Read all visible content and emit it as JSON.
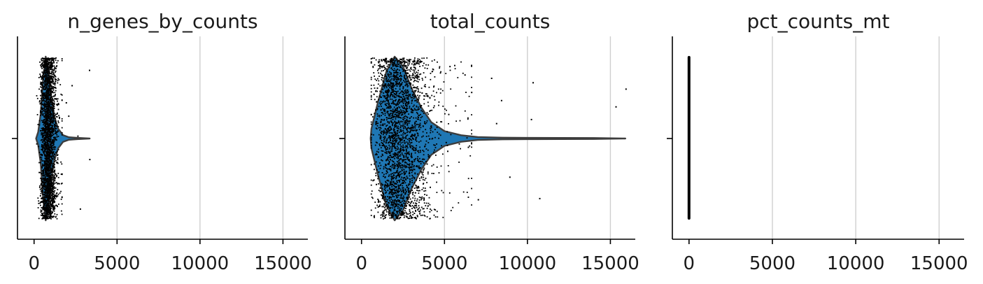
{
  "chart_data": [
    {
      "type": "violin",
      "title": "n_genes_by_counts",
      "xlim": [
        -1000,
        16500
      ],
      "xticks": [
        0,
        5000,
        10000,
        15000
      ],
      "xtick_labels": [
        "0",
        "5000",
        "10000",
        "15000"
      ],
      "grid": "vertical",
      "fill_color": "#1f77b4",
      "edge_color": "#3d3d3d",
      "distribution": {
        "min": 120,
        "q1": 650,
        "median": 790,
        "q3": 950,
        "max": 3350,
        "p99": 1500,
        "density": [
          [
            120,
            0
          ],
          [
            250,
            0.08
          ],
          [
            400,
            0.3
          ],
          [
            550,
            0.75
          ],
          [
            700,
            1.0
          ],
          [
            850,
            0.85
          ],
          [
            1000,
            0.55
          ],
          [
            1200,
            0.28
          ],
          [
            1450,
            0.12
          ],
          [
            1750,
            0.04
          ],
          [
            2100,
            0.015
          ],
          [
            2600,
            0.008
          ],
          [
            3350,
            0
          ]
        ]
      },
      "outliers": [
        1900,
        2050,
        2250,
        2600,
        2750,
        3300,
        3320
      ]
    },
    {
      "type": "violin",
      "title": "total_counts",
      "xlim": [
        -1000,
        16500
      ],
      "xticks": [
        0,
        5000,
        10000,
        15000
      ],
      "xtick_labels": [
        "0",
        "5000",
        "10000",
        "15000"
      ],
      "grid": "vertical",
      "fill_color": "#1f77b4",
      "edge_color": "#3d3d3d",
      "distribution": {
        "min": 550,
        "q1": 1700,
        "median": 2200,
        "q3": 2800,
        "max": 15900,
        "p99": 6000,
        "density": [
          [
            550,
            0
          ],
          [
            600,
            0.12
          ],
          [
            1000,
            0.45
          ],
          [
            1500,
            0.82
          ],
          [
            2000,
            1.0
          ],
          [
            2500,
            0.88
          ],
          [
            3000,
            0.62
          ],
          [
            3600,
            0.38
          ],
          [
            4200,
            0.2
          ],
          [
            5000,
            0.09
          ],
          [
            6000,
            0.04
          ],
          [
            7000,
            0.018
          ],
          [
            8500,
            0.01
          ],
          [
            10000,
            0.008
          ],
          [
            12000,
            0.007
          ],
          [
            14000,
            0.006
          ],
          [
            15900,
            0
          ]
        ]
      },
      "outliers": [
        6200,
        6400,
        6600,
        7000,
        7800,
        8100,
        8400,
        8900,
        10200,
        10300,
        10700,
        15300,
        15900
      ]
    },
    {
      "type": "violin",
      "title": "pct_counts_mt",
      "xlim": [
        -1000,
        16500
      ],
      "xticks": [
        0,
        5000,
        10000,
        15000
      ],
      "xtick_labels": [
        "0",
        "5000",
        "10000",
        "15000"
      ],
      "grid": "vertical",
      "fill_color": "#1f77b4",
      "edge_color": "#3d3d3d",
      "distribution": {
        "min": 0,
        "q1": 0,
        "median": 0,
        "q3": 0,
        "max": 0,
        "p99": 0,
        "density": [
          [
            0,
            0
          ]
        ]
      },
      "outliers": []
    }
  ]
}
